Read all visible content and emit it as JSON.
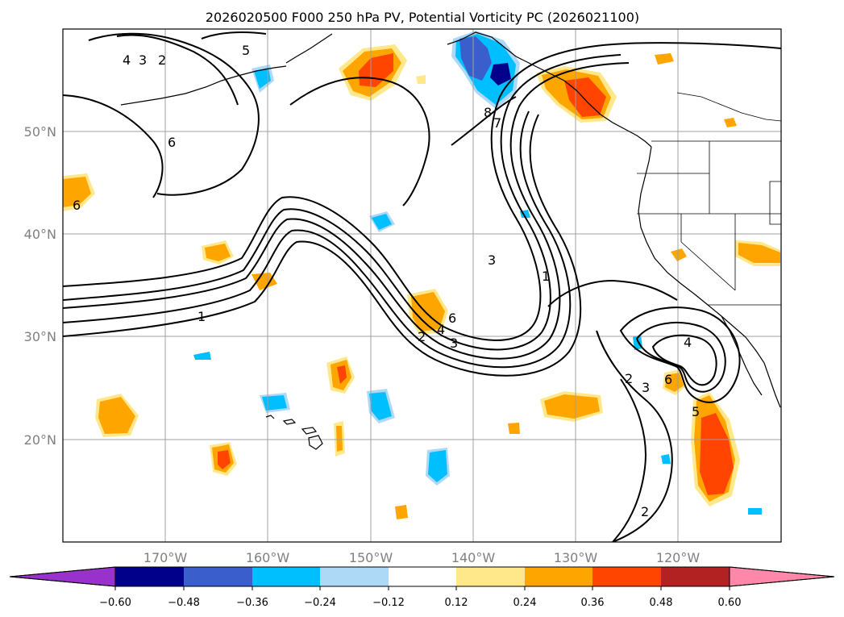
{
  "figure": {
    "title": "2026020500 F000 250 hPa PV, Potential Vorticity PC (2026021100)"
  },
  "map": {
    "lon_labels": [
      "170°W",
      "160°W",
      "150°W",
      "140°W",
      "130°W",
      "120°W"
    ],
    "lat_labels": [
      "50°N",
      "40°N",
      "30°N",
      "20°N"
    ],
    "lon_range": [
      -180,
      -110
    ],
    "lat_range": [
      10,
      60
    ],
    "gridlines": true,
    "colors": {
      "background": "#ffffff",
      "coastline": "#000000",
      "contour": "#000000",
      "grid": "#a0a0a0"
    }
  },
  "contour_labels": [
    "4",
    "3",
    "2",
    "5",
    "6",
    "6",
    "8",
    "7",
    "3",
    "1",
    "1",
    "2",
    "3",
    "4",
    "6",
    "4",
    "2",
    "3",
    "6",
    "5",
    "2"
  ],
  "colorbar": {
    "ticks": [
      "−0.60",
      "−0.48",
      "−0.36",
      "−0.24",
      "−0.12",
      "0.12",
      "0.24",
      "0.36",
      "0.48",
      "0.60"
    ],
    "colors": [
      "#9932cc",
      "#00008b",
      "#3a5fcd",
      "#00bfff",
      "#add8f6",
      "#ffffff",
      "#ffe88a",
      "#ffa500",
      "#ff4500",
      "#b22222",
      "#ff88aa"
    ]
  }
}
